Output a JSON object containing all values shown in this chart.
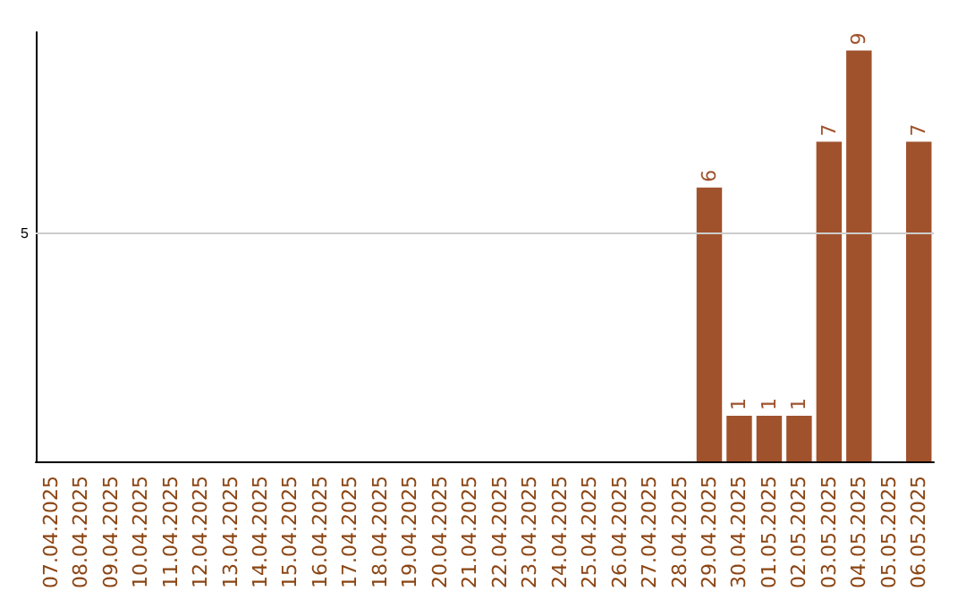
{
  "chart_data": {
    "type": "bar",
    "categories": [
      "07.04.2025",
      "08.04.2025",
      "09.04.2025",
      "10.04.2025",
      "11.04.2025",
      "12.04.2025",
      "13.04.2025",
      "14.04.2025",
      "15.04.2025",
      "16.04.2025",
      "17.04.2025",
      "18.04.2025",
      "19.04.2025",
      "20.04.2025",
      "21.04.2025",
      "22.04.2025",
      "23.04.2025",
      "24.04.2025",
      "25.04.2025",
      "26.04.2025",
      "27.04.2025",
      "28.04.2025",
      "29.04.2025",
      "30.04.2025",
      "01.05.2025",
      "02.05.2025",
      "03.05.2025",
      "04.05.2025",
      "05.05.2025",
      "06.05.2025"
    ],
    "values": [
      null,
      null,
      null,
      null,
      null,
      null,
      null,
      null,
      null,
      null,
      null,
      null,
      null,
      null,
      null,
      null,
      null,
      null,
      null,
      null,
      null,
      null,
      6,
      1,
      1,
      1,
      7,
      9,
      null,
      7
    ],
    "data_labels": true,
    "color": "#a0522d",
    "ylim": [
      0,
      9.4
    ],
    "ref_lines": [
      {
        "axis": "y",
        "value": 5,
        "label": "5",
        "color": "#cccccc"
      }
    ]
  }
}
